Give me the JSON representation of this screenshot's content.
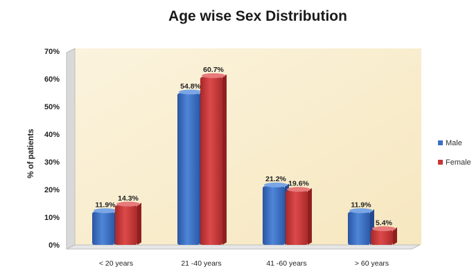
{
  "chart_data": {
    "type": "bar",
    "title": "Age wise Sex Distribution",
    "xlabel": "",
    "ylabel": "% of patients",
    "categories": [
      "< 20 years",
      "21 -40 years",
      "41 -60 years",
      "> 60 years"
    ],
    "series": [
      {
        "name": "Male",
        "values": [
          11.9,
          54.8,
          21.2,
          11.9
        ],
        "labels": [
          "11.9%",
          "54.8%",
          "21.2%",
          "11.9%"
        ],
        "color": "#3a6fc4"
      },
      {
        "name": "Female",
        "values": [
          14.3,
          60.7,
          19.6,
          5.4
        ],
        "labels": [
          "14.3%",
          "60.7%",
          "19.6%",
          "5.4%"
        ],
        "color": "#c83434"
      }
    ],
    "y_ticks": [
      "0%",
      "10%",
      "20%",
      "30%",
      "40%",
      "50%",
      "60%",
      "70%"
    ],
    "ylim": [
      0,
      70
    ],
    "grid": false,
    "legend_position": "right",
    "background": "#fbf0d2"
  }
}
